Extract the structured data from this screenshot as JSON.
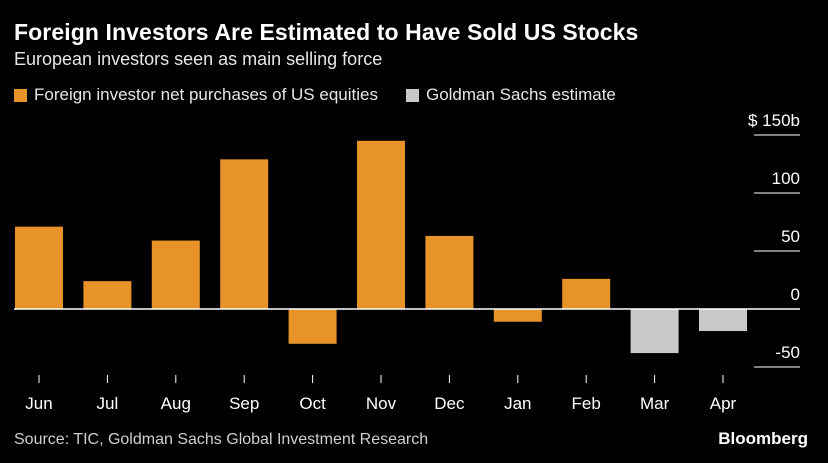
{
  "chart_data": {
    "type": "bar",
    "title": "Foreign Investors Are Estimated to Have Sold US Stocks",
    "subtitle": "European investors seen as main selling force",
    "categories": [
      "Jun",
      "Jul",
      "Aug",
      "Sep",
      "Oct",
      "Nov",
      "Dec",
      "Jan",
      "Feb",
      "Mar",
      "Apr"
    ],
    "series": [
      {
        "name": "Foreign investor net purchases of US equities",
        "color": "#e8932a",
        "values": [
          71,
          24,
          59,
          129,
          -30,
          145,
          63,
          -11,
          26,
          null,
          null
        ]
      },
      {
        "name": "Goldman Sachs estimate",
        "color": "#c8c8c8",
        "values": [
          null,
          null,
          null,
          null,
          null,
          null,
          null,
          null,
          null,
          -38,
          -19
        ]
      }
    ],
    "yaxis": {
      "min": -50,
      "max": 150,
      "ticks": [
        {
          "value": 150,
          "label": "$ 150b"
        },
        {
          "value": 100,
          "label": "100"
        },
        {
          "value": 50,
          "label": "50"
        },
        {
          "value": 0,
          "label": "0"
        },
        {
          "value": -50,
          "label": "-50"
        }
      ],
      "position": "right"
    },
    "grid": false,
    "legend_position": "top-left"
  },
  "footer": {
    "source": "Source: TIC, Goldman Sachs Global Investment Research",
    "brand": "Bloomberg"
  }
}
